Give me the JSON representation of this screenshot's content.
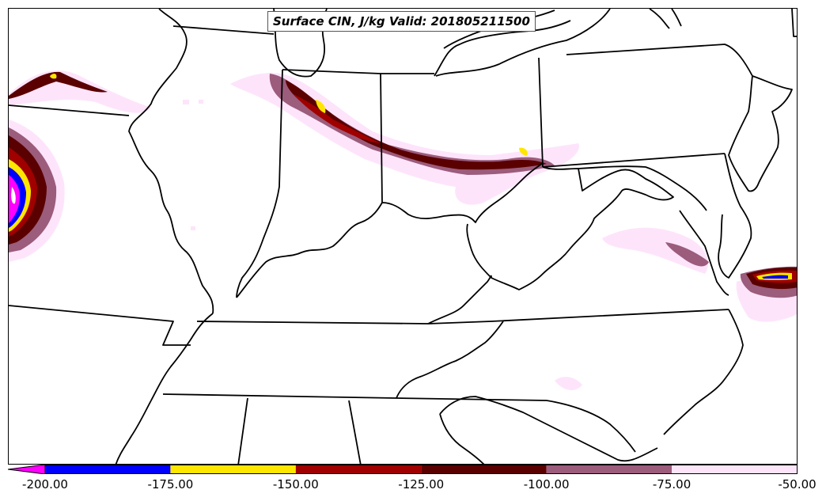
{
  "title": "Surface CIN, J/kg Valid: 201805211500",
  "colorbar": {
    "ticks": [
      "-200.00",
      "-175.00",
      "-150.00",
      "-125.00",
      "-100.00",
      "-75.00",
      "-50.00"
    ],
    "bins": [
      {
        "from": -200,
        "to": -175,
        "color": "#0000ff"
      },
      {
        "from": -175,
        "to": -150,
        "color": "#ffe600"
      },
      {
        "from": -150,
        "to": -125,
        "color": "#a00000"
      },
      {
        "from": -125,
        "to": -100,
        "color": "#5a0000"
      },
      {
        "from": -100,
        "to": -75,
        "color": "#9c5c7c"
      },
      {
        "from": -75,
        "to": -50,
        "color": "#fde4fb"
      }
    ],
    "under_color": "#ff00ff"
  }
}
